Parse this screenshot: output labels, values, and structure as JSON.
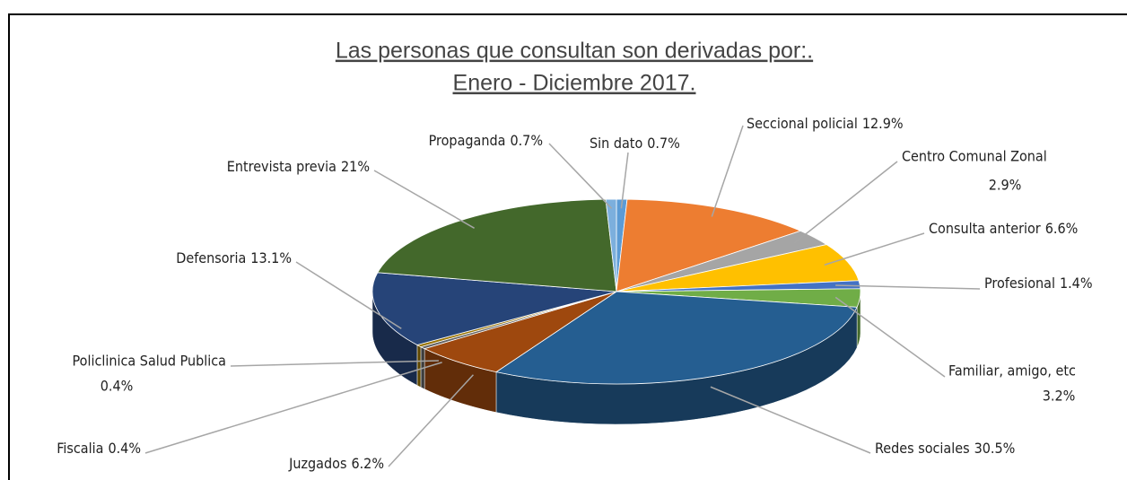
{
  "chart_data": {
    "type": "pie",
    "title": "Las personas que consultan son derivadas por:.",
    "subtitle": "Enero - Diciembre 2017.",
    "categories": [
      "Sin dato",
      "Seccional policial",
      "Centro Comunal Zonal",
      "Consulta anterior",
      "Profesional",
      "Familiar, amigo, etc",
      "Redes sociales",
      "Juzgados",
      "Fiscalia",
      "Policlinica Salud Publica",
      "Defensoria",
      "Entrevista previa",
      "Propaganda"
    ],
    "values": [
      0.7,
      12.9,
      2.9,
      6.6,
      1.4,
      3.2,
      30.5,
      6.2,
      0.4,
      0.4,
      13.1,
      21,
      0.7
    ],
    "value_labels": [
      "0.7%",
      "12.9%",
      "2.9%",
      "6.6%",
      "1.4%",
      "3.2%",
      "30.5%",
      "6.2%",
      "0.4%",
      "0.4%",
      "13.1%",
      "21%",
      "0.7%"
    ],
    "colors": [
      "#5b9bd5",
      "#ed7d31",
      "#a5a5a5",
      "#ffc000",
      "#4472c4",
      "#70ad47",
      "#255e91",
      "#9e480e",
      "#636363",
      "#997300",
      "#264478",
      "#43682b",
      "#7cafdd"
    ]
  }
}
